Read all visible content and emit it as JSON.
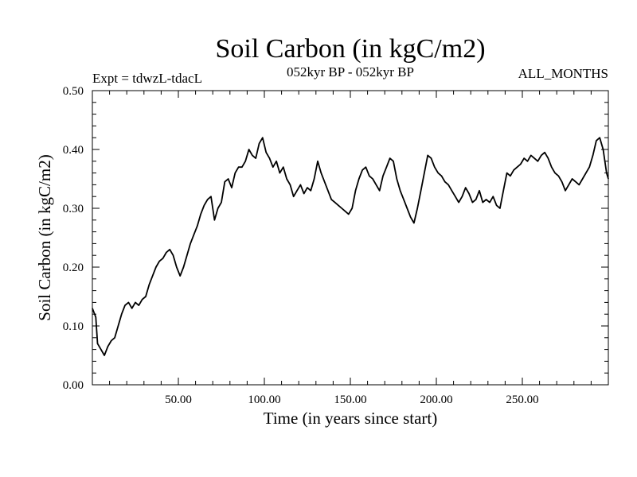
{
  "chart_data": {
    "type": "line",
    "title": "Soil Carbon (in kgC/m2)",
    "subtitle": "052kyr BP - 052kyr BP",
    "left_note": "Expt = tdwzL-tdacL",
    "right_note": "ALL_MONTHS",
    "xlabel": "Time (in years since start)",
    "ylabel": "Soil Carbon (in kgC/m2)",
    "xlim": [
      0,
      300
    ],
    "ylim": [
      0,
      0.5
    ],
    "x_ticks": [
      50,
      100,
      150,
      200,
      250
    ],
    "x_tick_labels": [
      "50.00",
      "100.00",
      "150.00",
      "200.00",
      "250.00"
    ],
    "y_ticks": [
      0,
      0.1,
      0.2,
      0.3,
      0.4,
      0.5
    ],
    "y_tick_labels": [
      "0.00",
      "0.10",
      "0.20",
      "0.30",
      "0.40",
      "0.50"
    ],
    "grid": false,
    "series": [
      {
        "name": "Soil Carbon",
        "x": [
          0,
          2,
          3,
          5,
          7,
          9,
          11,
          13,
          15,
          17,
          19,
          21,
          23,
          25,
          27,
          29,
          31,
          33,
          35,
          37,
          39,
          41,
          43,
          45,
          47,
          49,
          51,
          53,
          55,
          57,
          59,
          61,
          63,
          65,
          67,
          69,
          71,
          73,
          75,
          77,
          79,
          81,
          83,
          85,
          87,
          89,
          91,
          93,
          95,
          97,
          99,
          101,
          103,
          105,
          107,
          109,
          111,
          113,
          115,
          117,
          119,
          121,
          123,
          125,
          127,
          129,
          131,
          133,
          135,
          137,
          139,
          141,
          143,
          145,
          147,
          149,
          151,
          153,
          155,
          157,
          159,
          161,
          163,
          165,
          167,
          169,
          171,
          173,
          175,
          177,
          179,
          181,
          183,
          185,
          187,
          189,
          191,
          193,
          195,
          197,
          199,
          201,
          203,
          205,
          207,
          209,
          211,
          213,
          215,
          217,
          219,
          221,
          223,
          225,
          227,
          229,
          231,
          233,
          235,
          237,
          239,
          241,
          243,
          245,
          247,
          249,
          251,
          253,
          255,
          257,
          259,
          261,
          263,
          265,
          267,
          269,
          271,
          273,
          275,
          277,
          279,
          281,
          283,
          285,
          287,
          289,
          291,
          293,
          295,
          297,
          299,
          300
        ],
        "y": [
          0.13,
          0.115,
          0.07,
          0.06,
          0.05,
          0.065,
          0.075,
          0.08,
          0.1,
          0.12,
          0.135,
          0.14,
          0.13,
          0.14,
          0.135,
          0.145,
          0.15,
          0.17,
          0.185,
          0.2,
          0.21,
          0.215,
          0.225,
          0.23,
          0.22,
          0.2,
          0.185,
          0.2,
          0.22,
          0.24,
          0.255,
          0.27,
          0.29,
          0.305,
          0.315,
          0.32,
          0.28,
          0.3,
          0.31,
          0.345,
          0.35,
          0.335,
          0.36,
          0.37,
          0.37,
          0.38,
          0.4,
          0.39,
          0.385,
          0.41,
          0.42,
          0.395,
          0.385,
          0.37,
          0.38,
          0.36,
          0.37,
          0.35,
          0.34,
          0.32,
          0.33,
          0.34,
          0.325,
          0.335,
          0.33,
          0.35,
          0.38,
          0.36,
          0.345,
          0.33,
          0.315,
          0.31,
          0.305,
          0.3,
          0.295,
          0.29,
          0.3,
          0.33,
          0.35,
          0.365,
          0.37,
          0.355,
          0.35,
          0.34,
          0.33,
          0.355,
          0.37,
          0.385,
          0.38,
          0.35,
          0.33,
          0.315,
          0.3,
          0.285,
          0.275,
          0.3,
          0.33,
          0.36,
          0.39,
          0.385,
          0.37,
          0.36,
          0.355,
          0.345,
          0.34,
          0.33,
          0.32,
          0.31,
          0.32,
          0.335,
          0.325,
          0.31,
          0.315,
          0.33,
          0.31,
          0.315,
          0.31,
          0.32,
          0.305,
          0.3,
          0.33,
          0.36,
          0.355,
          0.365,
          0.37,
          0.375,
          0.385,
          0.38,
          0.39,
          0.385,
          0.38,
          0.39,
          0.395,
          0.385,
          0.37,
          0.36,
          0.355,
          0.345,
          0.33,
          0.34,
          0.35,
          0.345,
          0.34,
          0.35,
          0.36,
          0.37,
          0.39,
          0.415,
          0.42,
          0.4,
          0.36,
          0.35
        ]
      }
    ]
  }
}
